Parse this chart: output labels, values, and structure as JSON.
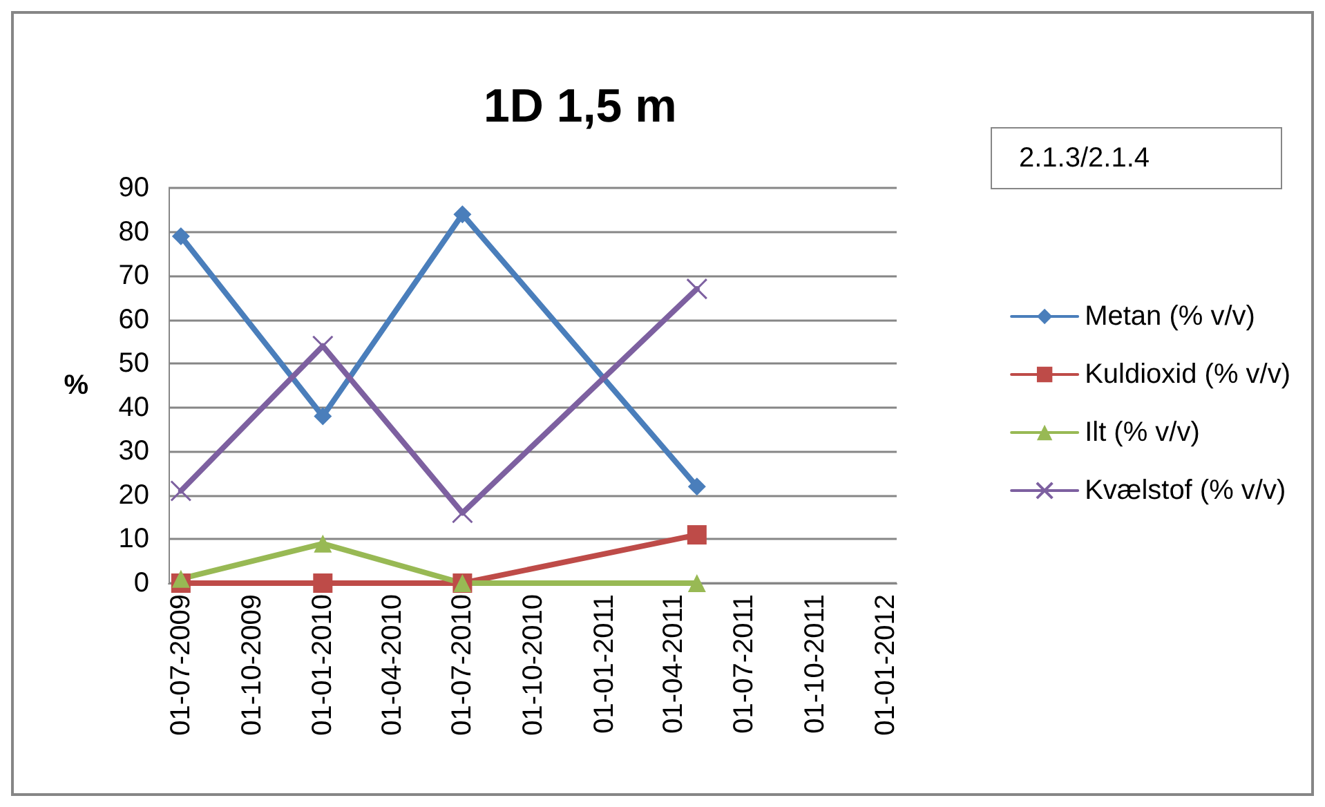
{
  "chart_data": {
    "type": "line",
    "title": "1D 1,5 m",
    "ylabel": "%",
    "annotations": [
      "2.1.3/2.1.4"
    ],
    "x": [
      "2009-07-01",
      "2010-01-01",
      "2010-07-01",
      "2011-05-01"
    ],
    "series": [
      {
        "name": "Metan (% v/v)",
        "color": "#4a7ebb",
        "marker": "diamond",
        "values": [
          79,
          38,
          84,
          22
        ]
      },
      {
        "name": "Kuldioxid (% v/v)",
        "color": "#be4b48",
        "marker": "square",
        "values": [
          0,
          0,
          0,
          11
        ]
      },
      {
        "name": "Ilt (% v/v)",
        "color": "#98b954",
        "marker": "triangle",
        "values": [
          1,
          9,
          0,
          0
        ]
      },
      {
        "name": "Kvælstof (% v/v)",
        "color": "#7d60a0",
        "marker": "cross",
        "values": [
          21,
          54,
          16,
          67
        ]
      }
    ],
    "xlim": [
      "2009-06-15",
      "2012-01-15"
    ],
    "xticks": [
      {
        "value": "2009-07-01",
        "label": "01-07-2009"
      },
      {
        "value": "2009-10-01",
        "label": "01-10-2009"
      },
      {
        "value": "2010-01-01",
        "label": "01-01-2010"
      },
      {
        "value": "2010-04-01",
        "label": "01-04-2010"
      },
      {
        "value": "2010-07-01",
        "label": "01-07-2010"
      },
      {
        "value": "2010-10-01",
        "label": "01-10-2010"
      },
      {
        "value": "2011-01-01",
        "label": "01-01-2011"
      },
      {
        "value": "2011-04-01",
        "label": "01-04-2011"
      },
      {
        "value": "2011-07-01",
        "label": "01-07-2011"
      },
      {
        "value": "2011-10-01",
        "label": "01-10-2011"
      },
      {
        "value": "2012-01-01",
        "label": "01-01-2012"
      }
    ],
    "ylim": [
      0,
      90
    ],
    "yticks": [
      0,
      10,
      20,
      30,
      40,
      50,
      60,
      70,
      80,
      90
    ],
    "grid": "y",
    "legend": "right",
    "line_style": "solid"
  }
}
